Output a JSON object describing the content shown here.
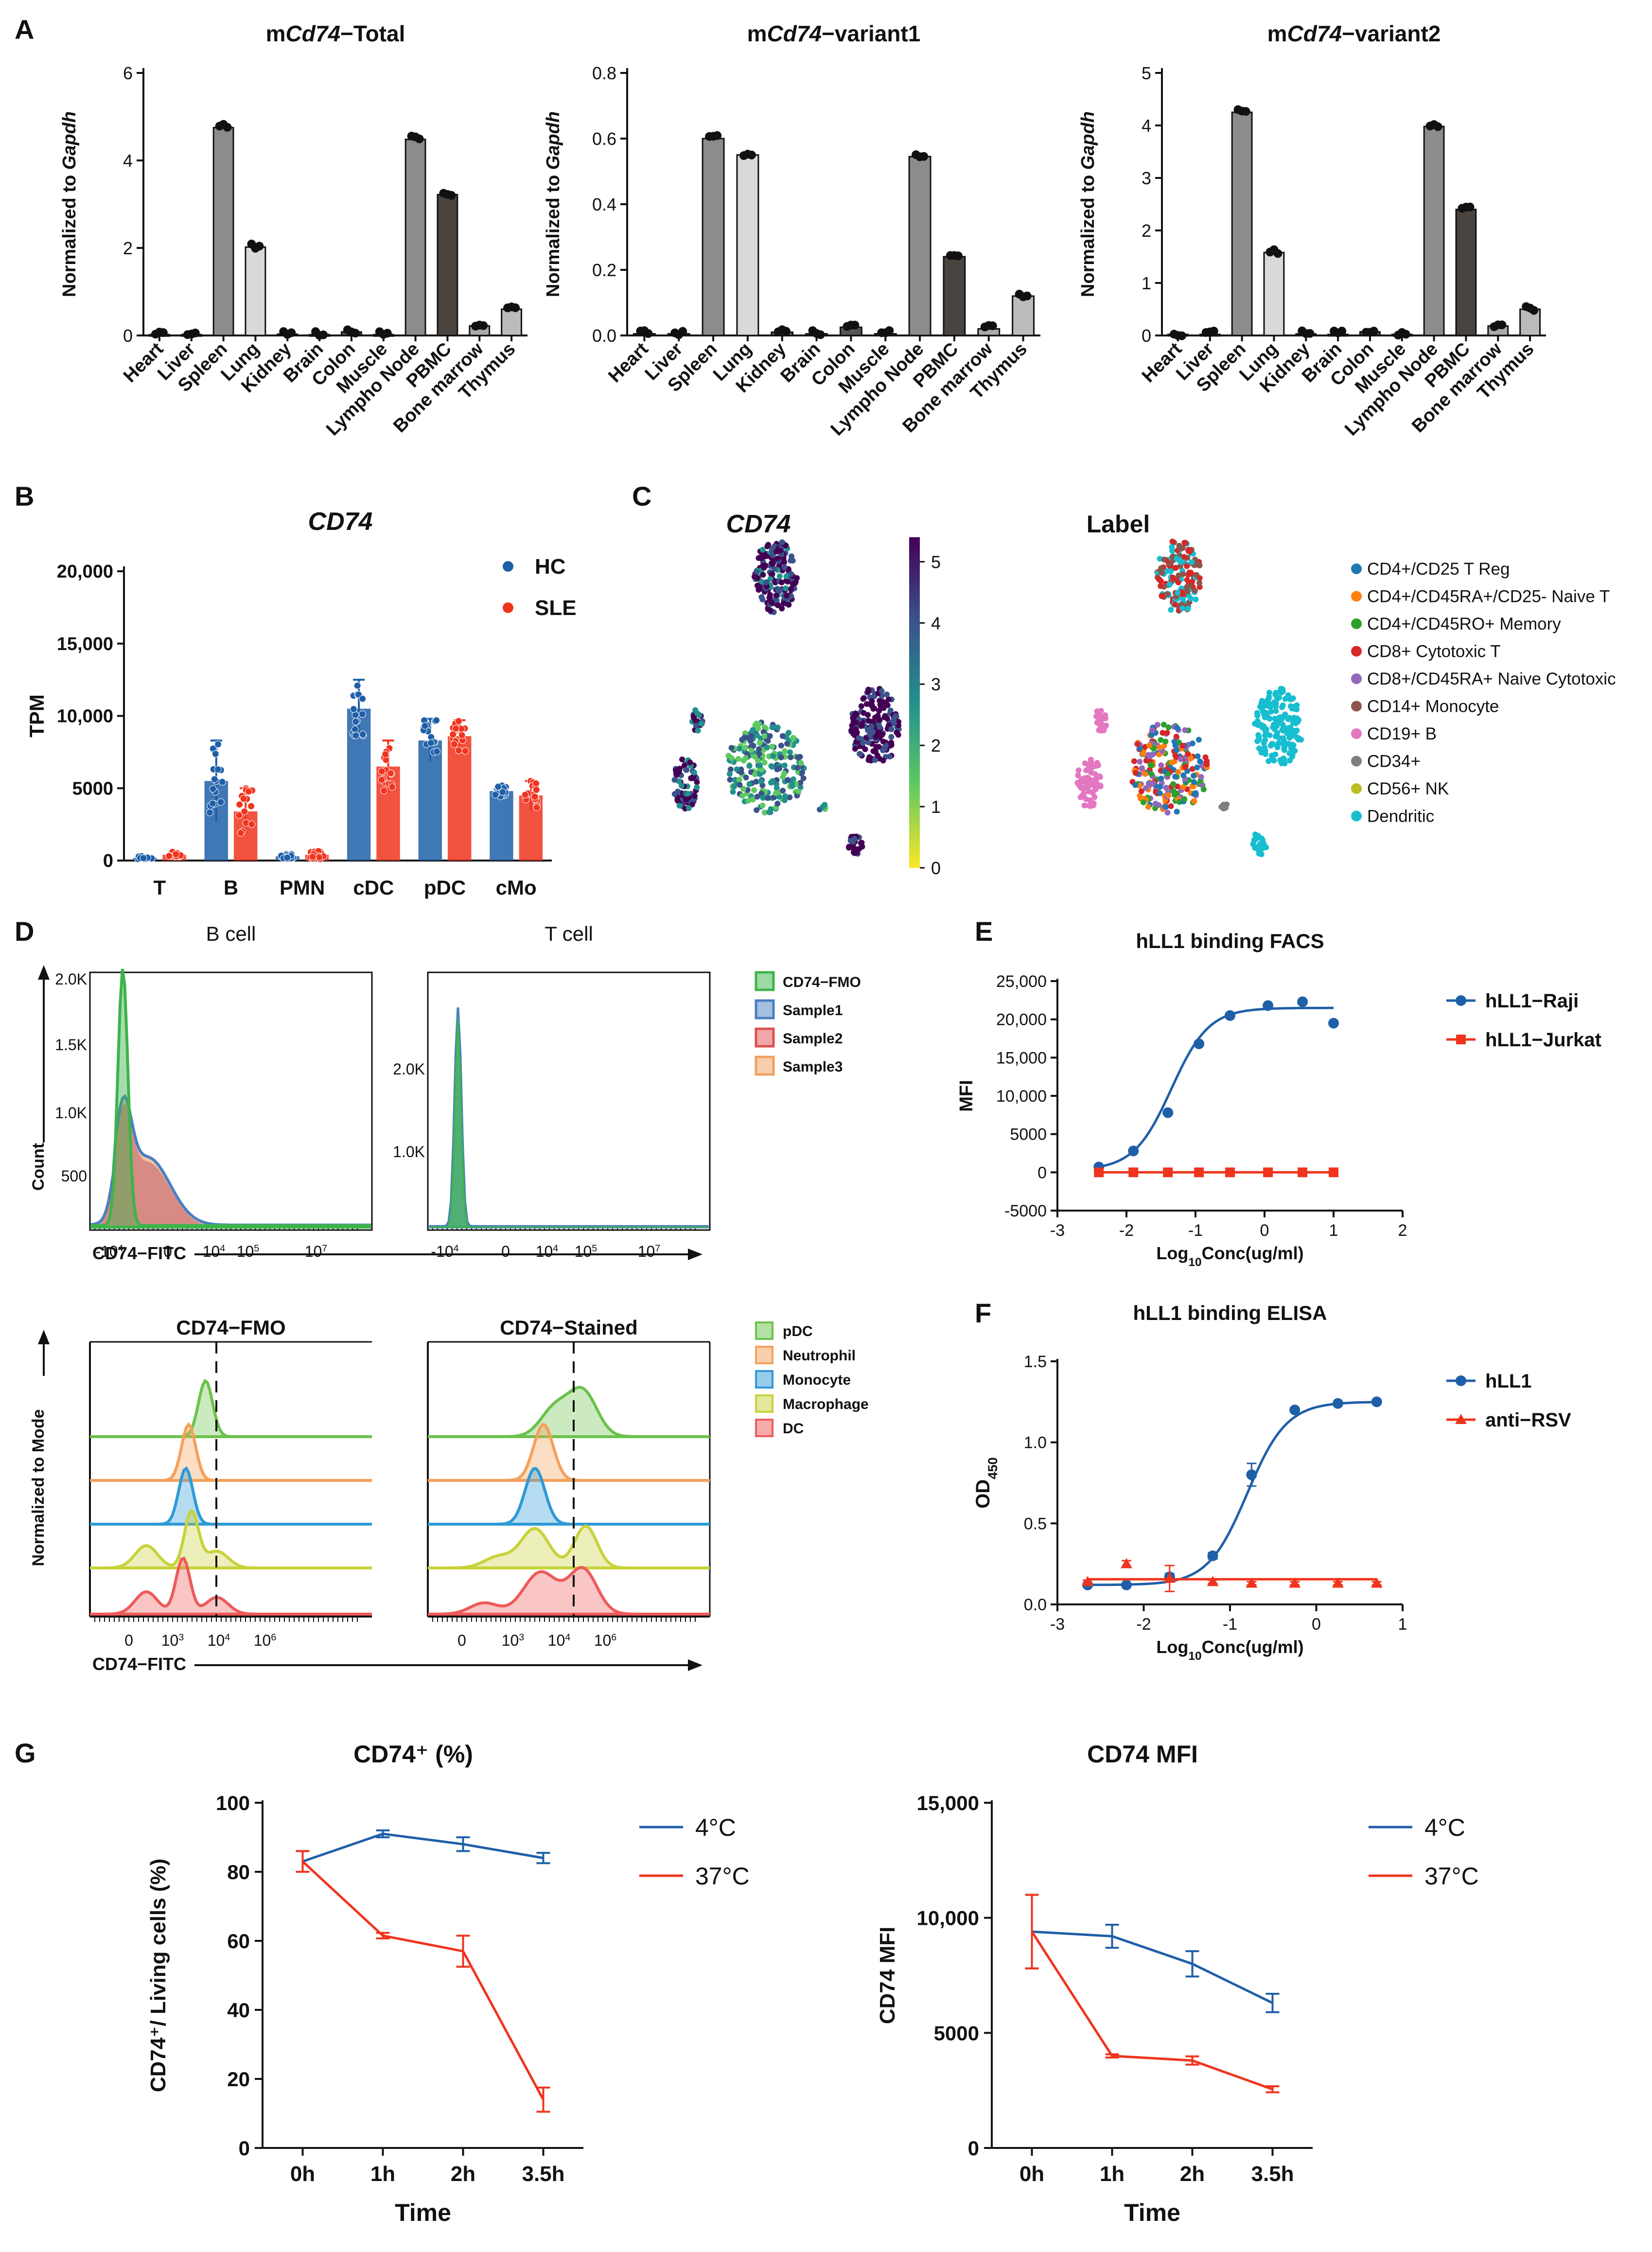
{
  "panel_labels": [
    "A",
    "B",
    "C",
    "D",
    "E",
    "F",
    "G"
  ],
  "chart_data": [
    {
      "id": "A1",
      "type": "bar",
      "title": "mCd74−Total",
      "title_prefix": "m",
      "title_gene": "Cd74",
      "title_suffix": "−Total",
      "ylabel_prefix": "Normalized to ",
      "ylabel_gene": "Gapdh",
      "categories": [
        "Heart",
        "Liver",
        "Spleen",
        "Lung",
        "Kidney",
        "Brain",
        "Colon",
        "Muscle",
        "Lympho Node",
        "PBMC",
        "Bone marrow",
        "Thymus"
      ],
      "values": [
        0.02,
        0.02,
        4.75,
        2.02,
        0.03,
        0.02,
        0.08,
        0.02,
        4.48,
        3.22,
        0.22,
        0.6
      ],
      "bar_colors": [
        "#555555",
        "#555555",
        "#8c8c8c",
        "#d9d9d9",
        "#555555",
        "#555555",
        "#555555",
        "#555555",
        "#8c8c8c",
        "#4a4440",
        "#aaaaaa",
        "#bbbbbb"
      ],
      "ylim": [
        0,
        6
      ],
      "yticks": [
        0,
        2,
        4,
        6
      ],
      "ytick_labels": [
        "0",
        "2",
        "4",
        "6"
      ]
    },
    {
      "id": "A2",
      "type": "bar",
      "title": "mCd74−variant1",
      "title_prefix": "m",
      "title_gene": "Cd74",
      "title_suffix": "−variant1",
      "ylabel_prefix": "Normalized to ",
      "ylabel_gene": "Gapdh",
      "categories": [
        "Heart",
        "Liver",
        "Spleen",
        "Lung",
        "Kidney",
        "Brain",
        "Colon",
        "Muscle",
        "Lympho Node",
        "PBMC",
        "Bone marrow",
        "Thymus"
      ],
      "values": [
        0.005,
        0.005,
        0.6,
        0.55,
        0.01,
        0.005,
        0.025,
        0.005,
        0.545,
        0.24,
        0.02,
        0.12
      ],
      "bar_colors": [
        "#555555",
        "#555555",
        "#8c8c8c",
        "#d9d9d9",
        "#555555",
        "#555555",
        "#555555",
        "#555555",
        "#8c8c8c",
        "#4a4440",
        "#aaaaaa",
        "#bbbbbb"
      ],
      "ylim": [
        0,
        0.8
      ],
      "yticks": [
        0,
        0.2,
        0.4,
        0.6,
        0.8
      ],
      "ytick_labels": [
        "0.0",
        "0.2",
        "0.4",
        "0.6",
        "0.8"
      ]
    },
    {
      "id": "A3",
      "type": "bar",
      "title": "mCd74−variant2",
      "title_prefix": "m",
      "title_gene": "Cd74",
      "title_suffix": "−variant2",
      "ylabel_prefix": "Normalized to ",
      "ylabel_gene": "Gapdh",
      "categories": [
        "Heart",
        "Liver",
        "Spleen",
        "Lung",
        "Kidney",
        "Brain",
        "Colon",
        "Muscle",
        "Lympho Node",
        "PBMC",
        "Bone marrow",
        "Thymus"
      ],
      "values": [
        0.02,
        0.02,
        4.25,
        1.58,
        0.03,
        0.02,
        0.07,
        0.02,
        3.98,
        2.4,
        0.18,
        0.5
      ],
      "bar_colors": [
        "#555555",
        "#555555",
        "#8c8c8c",
        "#d9d9d9",
        "#555555",
        "#555555",
        "#555555",
        "#555555",
        "#8c8c8c",
        "#4a4440",
        "#aaaaaa",
        "#bbbbbb"
      ],
      "ylim": [
        0,
        5
      ],
      "yticks": [
        0,
        1,
        2,
        3,
        4,
        5
      ],
      "ytick_labels": [
        "0",
        "1",
        "2",
        "3",
        "4",
        "5"
      ]
    },
    {
      "id": "B",
      "type": "bar",
      "title": "CD74",
      "ylabel": "TPM",
      "categories": [
        "T",
        "B",
        "PMN",
        "cDC",
        "pDC",
        "cMo"
      ],
      "series": [
        {
          "name": "HC",
          "color": "#1f5fa8",
          "values": [
            200,
            5500,
            300,
            10500,
            8300,
            4800
          ],
          "err": [
            100,
            2800,
            150,
            2000,
            1500,
            400
          ]
        },
        {
          "name": "SLE",
          "color": "#f0341e",
          "values": [
            400,
            3400,
            400,
            6500,
            8600,
            4500
          ],
          "err": [
            200,
            1600,
            300,
            1800,
            1100,
            1000
          ]
        }
      ],
      "ylim": [
        0,
        20000
      ],
      "yticks": [
        0,
        5000,
        10000,
        15000,
        20000
      ],
      "ytick_labels": [
        "0",
        "5000",
        "10,000",
        "15,000",
        "20,000"
      ]
    },
    {
      "id": "C",
      "type": "scatter",
      "title_left": "CD74",
      "title_right": "Label",
      "colorbar_ticks": [
        "0",
        "1",
        "2",
        "3",
        "4",
        "5"
      ],
      "legend": [
        {
          "label": "CD4+/CD25 T Reg",
          "color": "#1f77b4"
        },
        {
          "label": "CD4+/CD45RA+/CD25- Naive T",
          "color": "#ff7f0e"
        },
        {
          "label": "CD4+/CD45RO+ Memory",
          "color": "#2ca02c"
        },
        {
          "label": "CD8+ Cytotoxic T",
          "color": "#d62728"
        },
        {
          "label": "CD8+/CD45RA+ Naive Cytotoxic",
          "color": "#9467bd"
        },
        {
          "label": "CD14+ Monocyte",
          "color": "#8c564b"
        },
        {
          "label": "CD19+ B",
          "color": "#e377c2"
        },
        {
          "label": "CD34+",
          "color": "#7f7f7f"
        },
        {
          "label": "CD56+ NK",
          "color": "#bcbd22"
        },
        {
          "label": "Dendritic",
          "color": "#17becf"
        }
      ]
    },
    {
      "id": "D_top",
      "type": "area",
      "subtitles": [
        "B cell",
        "T cell"
      ],
      "ylabel": "Count",
      "xlabel": "CD74−FITC",
      "left_yticks": [
        "500",
        "1.0K",
        "1.5K",
        "2.0K"
      ],
      "right_yticks": [
        "1.0K",
        "2.0K"
      ],
      "xtick_labels": [
        "-10",
        "0",
        "10",
        "10",
        "10"
      ],
      "xtick_sups": [
        "4",
        "",
        "4",
        "5",
        "7"
      ],
      "legend": [
        {
          "label": "CD74−FMO",
          "color": "#3cb44b"
        },
        {
          "label": "Sample1",
          "color": "#4a7fc1"
        },
        {
          "label": "Sample2",
          "color": "#e05050"
        },
        {
          "label": "Sample3",
          "color": "#f0a060"
        }
      ]
    },
    {
      "id": "D_bottom",
      "type": "area",
      "subtitles": [
        "CD74−FMO",
        "CD74−Stained"
      ],
      "ylabel": "Normalized to Mode",
      "xlabel": "CD74−FITC",
      "xtick_labels": [
        "0",
        "10",
        "10",
        "10"
      ],
      "xtick_sups": [
        "",
        "3",
        "4",
        "6"
      ],
      "legend": [
        {
          "label": "pDC",
          "color": "#6cc24a"
        },
        {
          "label": "Neutrophil",
          "color": "#f5a05a"
        },
        {
          "label": "Monocyte",
          "color": "#2f9ad6"
        },
        {
          "label": "Macrophage",
          "color": "#c8d23a"
        },
        {
          "label": "DC",
          "color": "#ee5a5a"
        }
      ]
    },
    {
      "id": "E",
      "type": "line",
      "title": "hLL1 binding FACS",
      "ylabel": "MFI",
      "xlabel_prefix": "Log",
      "xlabel_sub": "10",
      "xlabel_suffix": "Conc(ug/ml)",
      "xlim": [
        -3,
        2
      ],
      "xticks": [
        -3,
        -2,
        -1,
        0,
        1,
        2
      ],
      "ylim": [
        -5000,
        25000
      ],
      "yticks": [
        -5000,
        0,
        5000,
        10000,
        15000,
        20000,
        25000
      ],
      "ytick_labels": [
        "-5000",
        "0",
        "5000",
        "10,000",
        "15,000",
        "20,000",
        "25,000"
      ],
      "series": [
        {
          "name": "hLL1−Raji",
          "color": "#1f5fa8",
          "marker": "circle",
          "x": [
            -2.4,
            -1.9,
            -1.4,
            -0.95,
            -0.5,
            0.05,
            0.55,
            1.0
          ],
          "y": [
            700,
            2800,
            7800,
            16800,
            20500,
            21800,
            22300,
            19500
          ]
        },
        {
          "name": "hLL1−Jurkat",
          "color": "#f0341e",
          "marker": "square",
          "x": [
            -2.4,
            -1.9,
            -1.4,
            -0.95,
            -0.5,
            0.05,
            0.55,
            1.0
          ],
          "y": [
            0,
            0,
            0,
            0,
            0,
            0,
            0,
            0
          ]
        }
      ]
    },
    {
      "id": "F",
      "type": "line",
      "title": "hLL1 binding ELISA",
      "ylabel_prefix": "OD",
      "ylabel_sub": "450",
      "xlabel_prefix": "Log",
      "xlabel_sub": "10",
      "xlabel_suffix": "Conc(ug/ml)",
      "xlim": [
        -3,
        1
      ],
      "xticks": [
        -3,
        -2,
        -1,
        0,
        1
      ],
      "ylim": [
        0,
        1.5
      ],
      "yticks": [
        0,
        0.5,
        1.0,
        1.5
      ],
      "ytick_labels": [
        "0.0",
        "0.5",
        "1.0",
        "1.5"
      ],
      "series": [
        {
          "name": "hLL1",
          "color": "#1f5fa8",
          "marker": "circle",
          "x": [
            -2.65,
            -2.2,
            -1.7,
            -1.2,
            -0.75,
            -0.25,
            0.25,
            0.7
          ],
          "y": [
            0.12,
            0.12,
            0.17,
            0.3,
            0.8,
            1.2,
            1.24,
            1.25
          ],
          "err": [
            0.01,
            0.01,
            0.02,
            0.02,
            0.07,
            0.01,
            0.01,
            0.01
          ]
        },
        {
          "name": "anti−RSV",
          "color": "#f0341e",
          "marker": "triangle",
          "x": [
            -2.65,
            -2.2,
            -1.7,
            -1.2,
            -0.75,
            -0.25,
            0.25,
            0.7
          ],
          "y": [
            0.14,
            0.25,
            0.16,
            0.14,
            0.13,
            0.13,
            0.13,
            0.13
          ],
          "err": [
            0.01,
            0.02,
            0.08,
            0.01,
            0.01,
            0.01,
            0.01,
            0.01
          ]
        }
      ]
    },
    {
      "id": "G1",
      "type": "line",
      "title": "CD74⁺  (%)",
      "ylabel": "CD74⁺/ Living cells (%)",
      "xlabel": "Time",
      "categories": [
        "0h",
        "1h",
        "2h",
        "3.5h"
      ],
      "ylim": [
        0,
        100
      ],
      "yticks": [
        0,
        20,
        40,
        60,
        80,
        100
      ],
      "ytick_labels": [
        "0",
        "20",
        "40",
        "60",
        "80",
        "100"
      ],
      "series": [
        {
          "name": "4°C",
          "color": "#1f5fa8",
          "values": [
            83,
            91,
            88,
            84
          ],
          "err": [
            3,
            1,
            2,
            1.5
          ]
        },
        {
          "name": "37°C",
          "color": "#f0341e",
          "values": [
            83,
            61.5,
            57,
            14
          ],
          "err": [
            3,
            0.8,
            4.5,
            3.5
          ]
        }
      ]
    },
    {
      "id": "G2",
      "type": "line",
      "title": "CD74 MFI",
      "ylabel": "CD74 MFI",
      "xlabel": "Time",
      "categories": [
        "0h",
        "1h",
        "2h",
        "3.5h"
      ],
      "ylim": [
        0,
        15000
      ],
      "yticks": [
        0,
        5000,
        10000,
        15000
      ],
      "ytick_labels": [
        "0",
        "5000",
        "10,000",
        "15,000"
      ],
      "series": [
        {
          "name": "4°C",
          "color": "#1f5fa8",
          "values": [
            9400,
            9200,
            8000,
            6300
          ],
          "err": [
            1600,
            500,
            550,
            400
          ]
        },
        {
          "name": "37°C",
          "color": "#f0341e",
          "values": [
            9400,
            4000,
            3800,
            2550
          ],
          "err": [
            1600,
            70,
            180,
            130
          ]
        }
      ]
    }
  ]
}
